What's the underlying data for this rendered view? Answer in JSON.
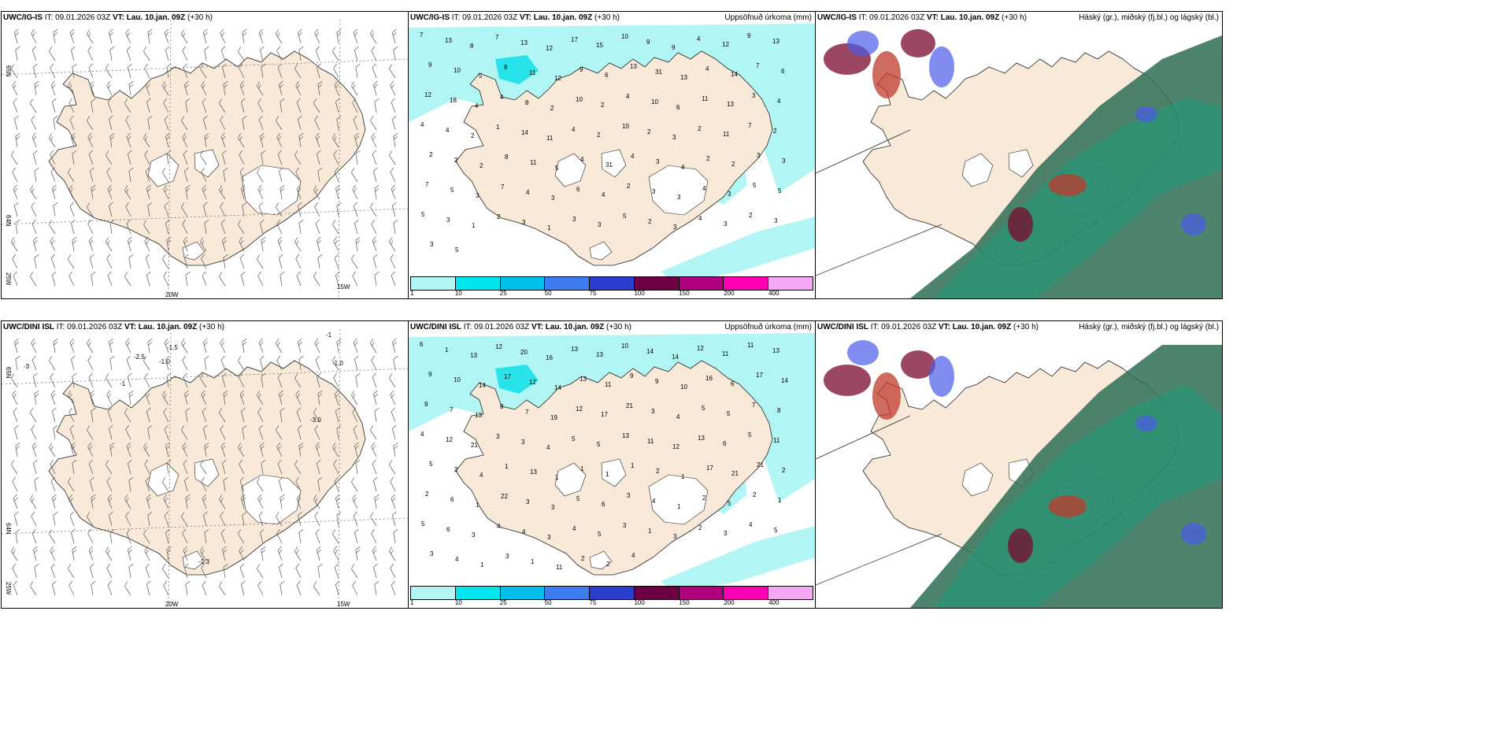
{
  "rows": [
    {
      "model": "UWC/IG-IS",
      "it_label": "IT:",
      "it_value": "09.01.2026 03Z",
      "vt_label": "VT:",
      "vt_value": "Lau. 10.jan. 09Z",
      "lead": "(+30 h)",
      "precip_title": "Uppsöfnuð úrkoma (mm)",
      "cloud_title": "Háský (gr.), miðský (fj.bl.) og lágský (bl.)",
      "precip_numbers": [
        "7",
        "13",
        "8",
        "7",
        "13",
        "12",
        "17",
        "15",
        "10",
        "9",
        "9",
        "4",
        "12",
        "9",
        "13",
        "9",
        "10",
        "5",
        "8",
        "11",
        "12",
        "9",
        "6",
        "13",
        "31",
        "13",
        "4",
        "14",
        "7",
        "6",
        "12",
        "18",
        "4",
        "4",
        "8",
        "2",
        "10",
        "2",
        "4",
        "10",
        "6",
        "11",
        "13",
        "3",
        "4",
        "4",
        "4",
        "2",
        "1",
        "14",
        "11",
        "4",
        "2",
        "10",
        "2",
        "3",
        "2",
        "11",
        "7",
        "2",
        "2",
        "2",
        "2",
        "8",
        "11",
        "5",
        "4",
        "31",
        "4",
        "3",
        "4",
        "2",
        "2",
        "3",
        "3",
        "7",
        "5",
        "3",
        "7",
        "4",
        "3",
        "6",
        "4",
        "2",
        "3",
        "3",
        "4",
        "3",
        "5",
        "5",
        "5",
        "3",
        "1",
        "2",
        "3",
        "1",
        "3",
        "3",
        "5",
        "2",
        "3",
        "4",
        "3",
        "2",
        "3",
        "3",
        "5"
      ]
    },
    {
      "model": "UWC/DINI ISL",
      "it_label": "IT:",
      "it_value": "09.01.2026 03Z",
      "vt_label": "VT:",
      "vt_value": "Lau. 10.jan. 09Z",
      "lead": "(+30 h)",
      "precip_title": "Uppsöfnuð úrkoma (mm)",
      "cloud_title": "Háský (gr.), miðský (fj.bl.) og lágský (bl.)",
      "precip_numbers": [
        "6",
        "1",
        "13",
        "12",
        "20",
        "16",
        "13",
        "13",
        "10",
        "14",
        "14",
        "12",
        "11",
        "11",
        "13",
        "9",
        "10",
        "14",
        "17",
        "12",
        "14",
        "13",
        "11",
        "9",
        "9",
        "10",
        "16",
        "6",
        "17",
        "14",
        "9",
        "7",
        "13",
        "8",
        "7",
        "19",
        "12",
        "17",
        "21",
        "3",
        "4",
        "5",
        "5",
        "7",
        "8",
        "4",
        "12",
        "21",
        "3",
        "3",
        "4",
        "5",
        "5",
        "13",
        "11",
        "12",
        "13",
        "6",
        "5",
        "11",
        "5",
        "2",
        "4",
        "1",
        "13",
        "1",
        "1",
        "1",
        "1",
        "2",
        "1",
        "17",
        "21",
        "21",
        "2",
        "2",
        "6",
        "1",
        "22",
        "3",
        "3",
        "5",
        "6",
        "3",
        "4",
        "1",
        "2",
        "5",
        "2",
        "1",
        "5",
        "6",
        "3",
        "4",
        "4",
        "3",
        "4",
        "5",
        "3",
        "1",
        "3",
        "2",
        "3",
        "4",
        "5",
        "3",
        "4",
        "1",
        "3",
        "1",
        "11",
        "2",
        "2",
        "4"
      ]
    }
  ],
  "wind_panel": {
    "lon_labels": [
      "20W",
      "15W"
    ],
    "lat_labels": [
      "65N",
      "64N",
      "25W"
    ],
    "top_row_mslp": [],
    "bottom_row_mslp": [
      "-3",
      "-1.5",
      "-2.5",
      "-1.0",
      "-1",
      "-1.0",
      "-1",
      "-3.0",
      "-1.3"
    ]
  },
  "colorbar": {
    "ticks": [
      "1",
      "10",
      "25",
      "50",
      "75",
      "100",
      "150",
      "200",
      "400"
    ],
    "colors": [
      "#b2f5f5",
      "#00e5ee",
      "#00c0ea",
      "#3d7cf0",
      "#2a3fd0",
      "#6e0044",
      "#b0007e",
      "#ff00b4",
      "#f4a8f4"
    ]
  },
  "colors": {
    "land": "#f9e9d9",
    "glacier": "#ffffff",
    "sea": "#ffffff",
    "precip": "#b2f5f5",
    "precip_strong": "#28e2ea",
    "cloud_low": "#2e6e55",
    "cloud_mid": "#1e9c7a",
    "cloud_high_red": "#c0392b",
    "cloud_high_dark": "#7a0a2c",
    "cloud_blue": "#4a5be8"
  }
}
